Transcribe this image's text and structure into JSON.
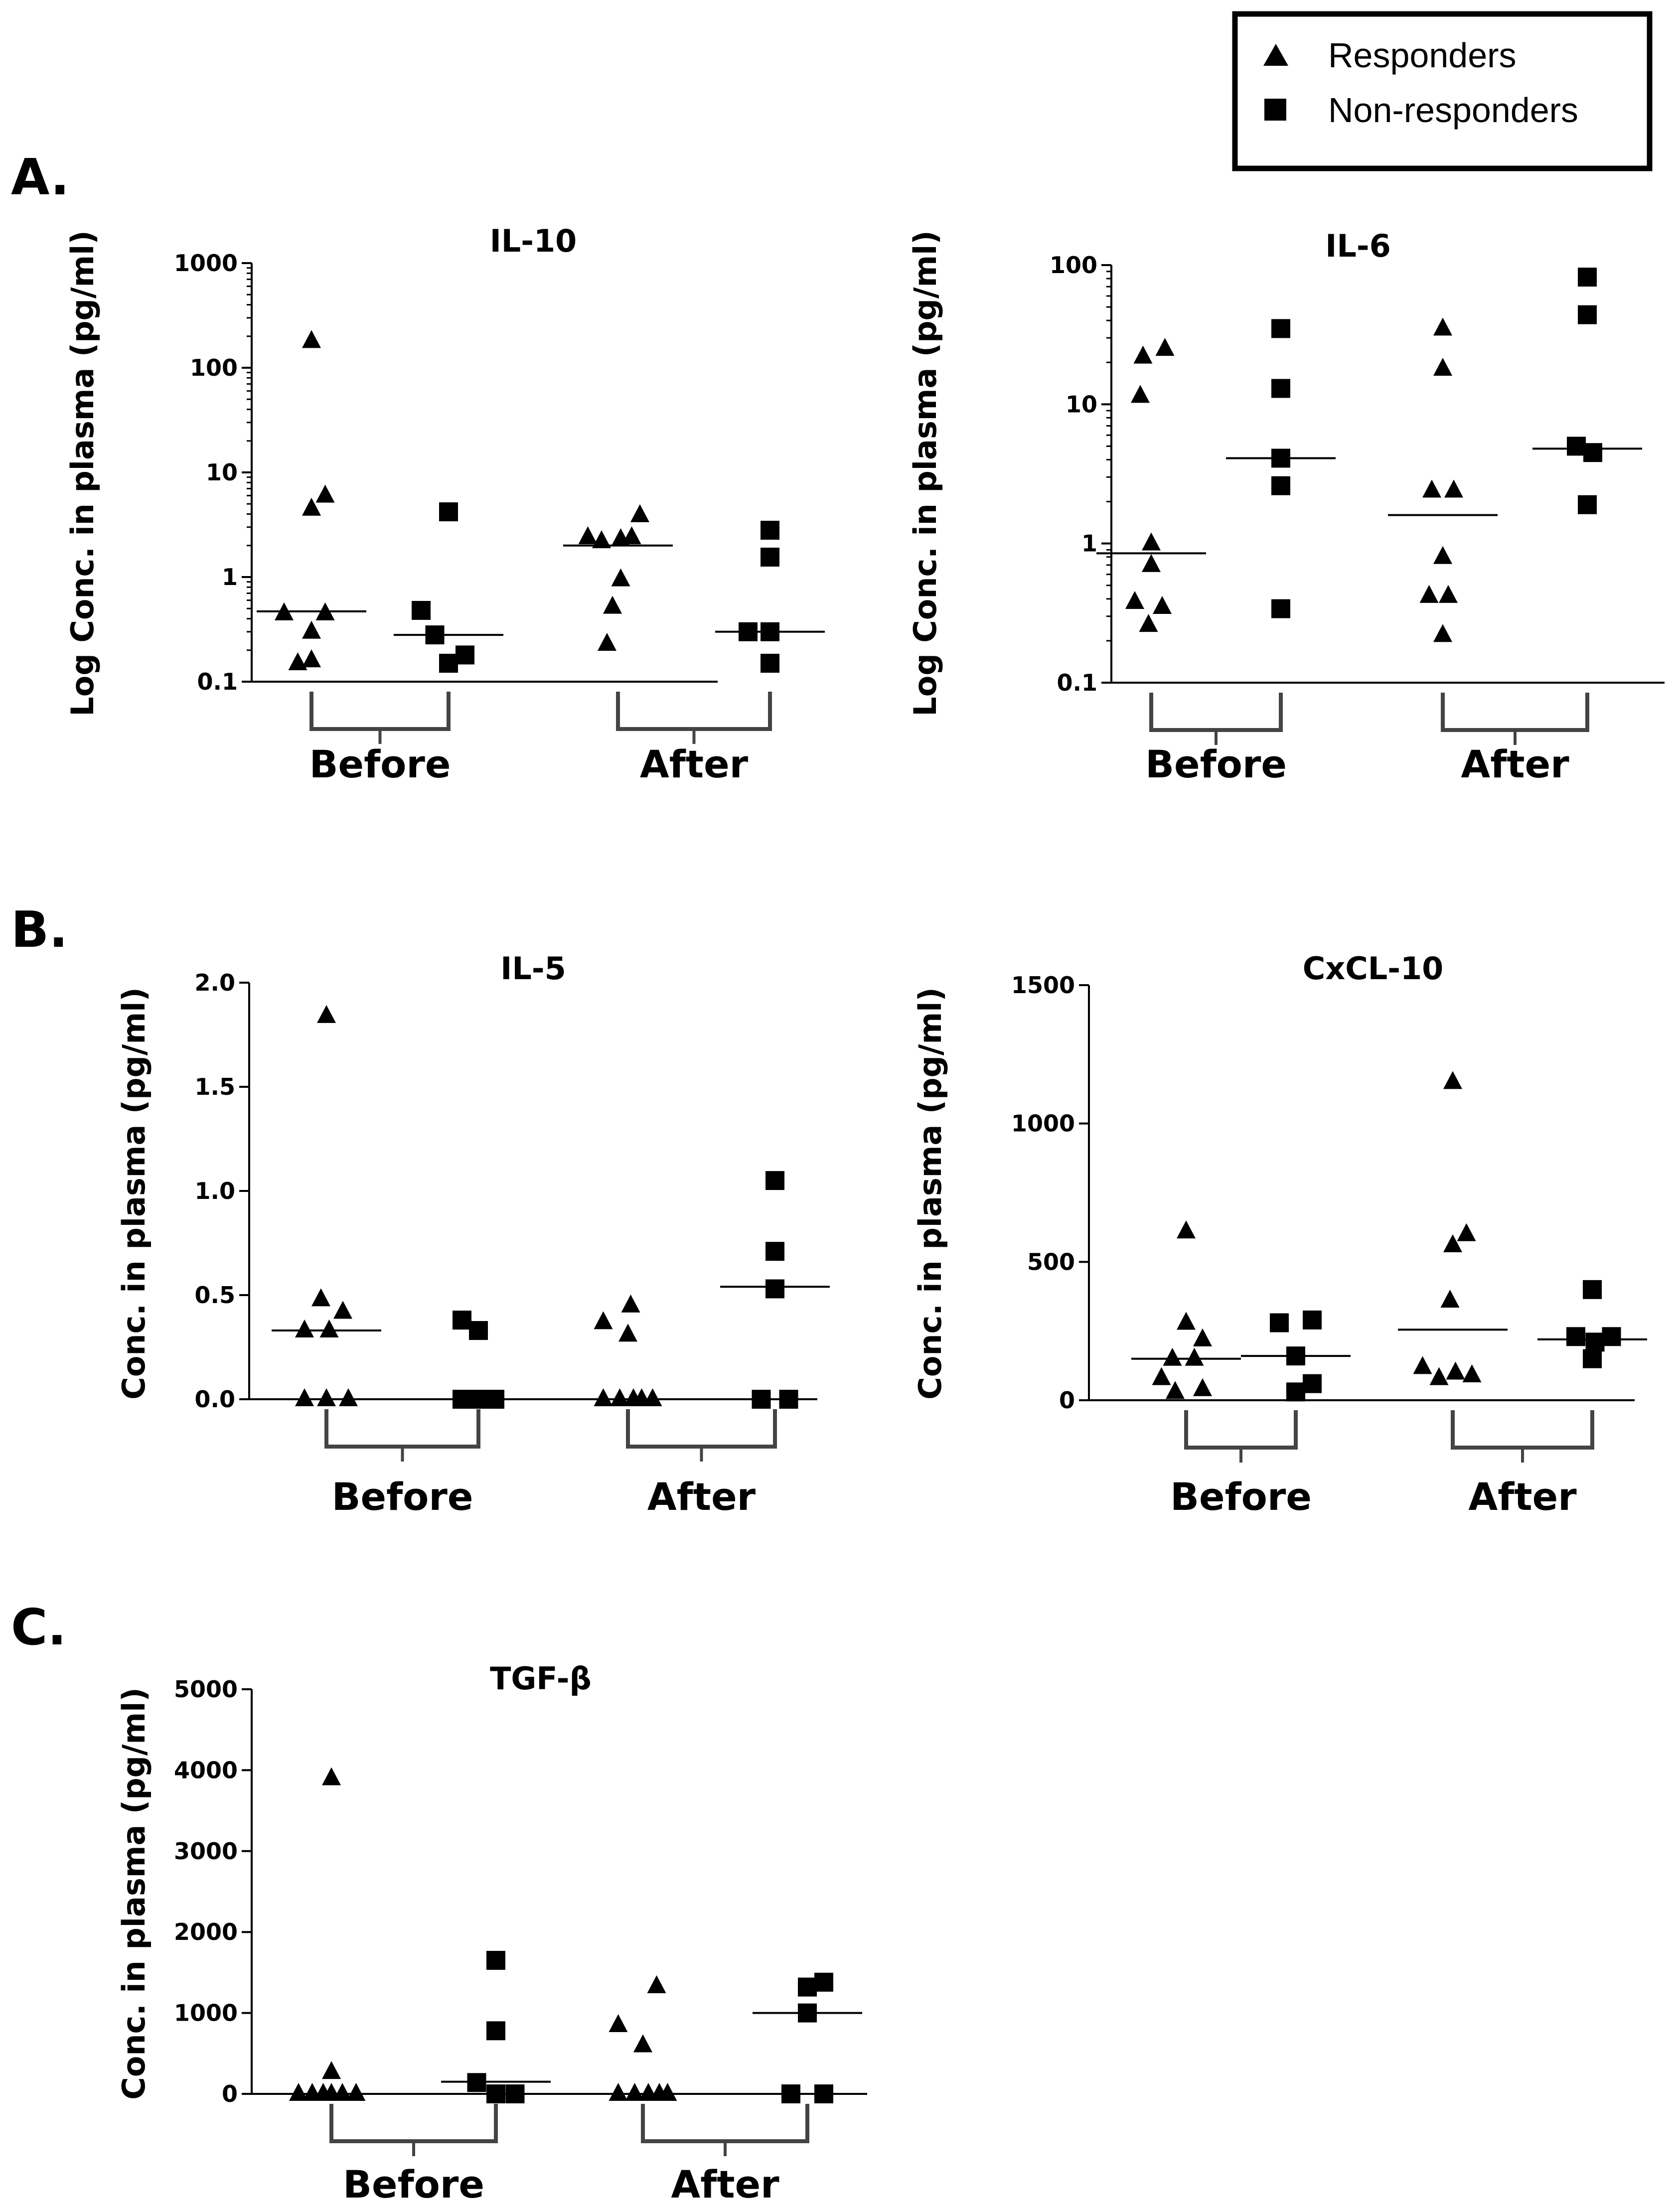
{
  "legend": {
    "items": [
      {
        "label": "Responders",
        "marker": "triangle"
      },
      {
        "label": "Non-responders",
        "marker": "square"
      }
    ]
  },
  "panel_labels": [
    "A.",
    "B.",
    "C."
  ],
  "chart_data": [
    {
      "type": "scatter",
      "scale": "log",
      "title": "IL-10",
      "panel": "A.",
      "ylabel": "Log Conc. in plasma (pg/ml)",
      "ylim": [
        0.1,
        1000
      ],
      "ticks": [
        0.1,
        1,
        10,
        100,
        1000
      ],
      "tick_labels": [
        "0.1",
        "1",
        "10",
        "100",
        "1000"
      ],
      "group_labels": [
        "Before",
        "After"
      ],
      "series": [
        {
          "name": "Responders",
          "phase": "Before",
          "marker": "triangle",
          "median": 0.47,
          "points": [
            [
              -0.5,
              0.45
            ],
            [
              -0.25,
              0.15
            ],
            [
              0,
              0.3
            ],
            [
              0,
              4.5
            ],
            [
              0,
              180
            ],
            [
              0,
              0.16
            ],
            [
              0.25,
              0.45
            ],
            [
              0.25,
              6
            ]
          ]
        },
        {
          "name": "Non-responders",
          "phase": "Before",
          "marker": "square",
          "median": 0.28,
          "points": [
            [
              -0.5,
              0.48
            ],
            [
              -0.25,
              0.28
            ],
            [
              0,
              0.15
            ],
            [
              0,
              4.2
            ],
            [
              0.3,
              0.18
            ]
          ]
        },
        {
          "name": "Responders",
          "phase": "After",
          "marker": "triangle",
          "median": 2.0,
          "points": [
            [
              -0.55,
              2.4
            ],
            [
              -0.3,
              2.2
            ],
            [
              -0.2,
              0.23
            ],
            [
              -0.1,
              0.52
            ],
            [
              0.05,
              2.3
            ],
            [
              0.05,
              0.95
            ],
            [
              0.25,
              2.4
            ],
            [
              0.4,
              3.9
            ]
          ]
        },
        {
          "name": "Non-responders",
          "phase": "After",
          "marker": "square",
          "median": 0.3,
          "points": [
            [
              -0.4,
              0.3
            ],
            [
              0,
              2.8
            ],
            [
              0,
              1.55
            ],
            [
              0,
              0.3
            ],
            [
              0,
              0.15
            ]
          ]
        }
      ]
    },
    {
      "type": "scatter",
      "scale": "log",
      "title": "IL-6",
      "panel": "A.",
      "ylabel": "Log Conc. in plasma (pg/ml)",
      "ylim": [
        0.1,
        100
      ],
      "ticks": [
        0.1,
        1,
        10,
        100
      ],
      "tick_labels": [
        "0.1",
        "1",
        "10",
        "100"
      ],
      "group_labels": [
        "Before",
        "After"
      ],
      "series": [
        {
          "name": "Responders",
          "phase": "Before",
          "marker": "triangle",
          "median": 0.85,
          "points": [
            [
              -0.3,
              0.38
            ],
            [
              -0.2,
              11.5
            ],
            [
              -0.15,
              22
            ],
            [
              -0.05,
              0.26
            ],
            [
              0,
              1.0
            ],
            [
              0,
              0.7
            ],
            [
              0.2,
              0.35
            ],
            [
              0.25,
              25
            ]
          ]
        },
        {
          "name": "Non-responders",
          "phase": "Before",
          "marker": "square",
          "median": 4.1,
          "points": [
            [
              0,
              35
            ],
            [
              0,
              13
            ],
            [
              0,
              4.1
            ],
            [
              0,
              2.6
            ],
            [
              0,
              0.34
            ]
          ]
        },
        {
          "name": "Responders",
          "phase": "After",
          "marker": "triangle",
          "median": 1.6,
          "points": [
            [
              -0.25,
              0.42
            ],
            [
              -0.2,
              2.4
            ],
            [
              0,
              18
            ],
            [
              0,
              35
            ],
            [
              0,
              0.8
            ],
            [
              0,
              0.22
            ],
            [
              0.1,
              0.42
            ],
            [
              0.2,
              2.4
            ]
          ]
        },
        {
          "name": "Non-responders",
          "phase": "After",
          "marker": "square",
          "median": 4.8,
          "points": [
            [
              -0.2,
              5.0
            ],
            [
              0,
              82
            ],
            [
              0,
              44
            ],
            [
              0.1,
              4.5
            ],
            [
              0,
              1.9
            ]
          ]
        }
      ]
    },
    {
      "type": "scatter",
      "scale": "linear",
      "title": "IL-5",
      "panel": "B.",
      "ylabel": "Conc. in plasma (pg/ml)",
      "ylim": [
        0,
        2.0
      ],
      "ticks": [
        0,
        0.5,
        1,
        1.5,
        2
      ],
      "tick_labels": [
        "0.0",
        "0.5",
        "1.0",
        "1.5",
        "2.0"
      ],
      "group_labels": [
        "Before",
        "After"
      ],
      "series": [
        {
          "name": "Responders",
          "phase": "Before",
          "marker": "triangle",
          "median": 0.33,
          "points": [
            [
              -0.4,
              0.33
            ],
            [
              -0.4,
              0.0
            ],
            [
              -0.1,
              0.48
            ],
            [
              0,
              0.0
            ],
            [
              0,
              1.84
            ],
            [
              0.05,
              0.33
            ],
            [
              0.3,
              0.42
            ],
            [
              0.4,
              0.0
            ]
          ]
        },
        {
          "name": "Non-responders",
          "phase": "Before",
          "marker": "square",
          "median": 0.0,
          "points": [
            [
              -0.3,
              0.38
            ],
            [
              -0.3,
              0.0
            ],
            [
              0,
              0.33
            ],
            [
              0,
              0.0
            ],
            [
              0.3,
              0.0
            ]
          ]
        },
        {
          "name": "Responders",
          "phase": "After",
          "marker": "triangle",
          "median": 0.0,
          "points": [
            [
              -0.45,
              0.37
            ],
            [
              -0.45,
              0.0
            ],
            [
              -0.15,
              0.0
            ],
            [
              0,
              0.31
            ],
            [
              0.05,
              0.45
            ],
            [
              0.1,
              0.0
            ],
            [
              0.25,
              0.0
            ],
            [
              0.45,
              0.0
            ]
          ]
        },
        {
          "name": "Non-responders",
          "phase": "After",
          "marker": "square",
          "median": 0.54,
          "points": [
            [
              0,
              1.05
            ],
            [
              0,
              0.71
            ],
            [
              0,
              0.53
            ],
            [
              -0.25,
              0.0
            ],
            [
              0.25,
              0.0
            ]
          ]
        }
      ]
    },
    {
      "type": "scatter",
      "scale": "linear",
      "title": "CxCL-10",
      "panel": "B.",
      "ylabel": "Conc. in plasma (pg/ml)",
      "ylim": [
        0,
        1500
      ],
      "ticks": [
        0,
        500,
        1000,
        1500
      ],
      "tick_labels": [
        "0",
        "500",
        "1000",
        "1500"
      ],
      "group_labels": [
        "Before",
        "After"
      ],
      "series": [
        {
          "name": "Responders",
          "phase": "Before",
          "marker": "triangle",
          "median": 150,
          "points": [
            [
              -0.45,
              80
            ],
            [
              -0.25,
              150
            ],
            [
              -0.2,
              30
            ],
            [
              0,
              280
            ],
            [
              0,
              610
            ],
            [
              0.15,
              150
            ],
            [
              0.3,
              220
            ],
            [
              0.3,
              40
            ]
          ]
        },
        {
          "name": "Non-responders",
          "phase": "Before",
          "marker": "square",
          "median": 160,
          "points": [
            [
              -0.3,
              280
            ],
            [
              0,
              30
            ],
            [
              0.3,
              60
            ],
            [
              0.3,
              290
            ],
            [
              0,
              160
            ]
          ]
        },
        {
          "name": "Responders",
          "phase": "After",
          "marker": "triangle",
          "median": 255,
          "points": [
            [
              -0.55,
              120
            ],
            [
              -0.25,
              80
            ],
            [
              -0.05,
              360
            ],
            [
              0,
              560
            ],
            [
              0,
              1150
            ],
            [
              0.05,
              100
            ],
            [
              0.25,
              600
            ],
            [
              0.35,
              90
            ]
          ]
        },
        {
          "name": "Non-responders",
          "phase": "After",
          "marker": "square",
          "median": 220,
          "points": [
            [
              -0.3,
              230
            ],
            [
              0,
              400
            ],
            [
              0,
              150
            ],
            [
              0.35,
              230
            ],
            [
              0.05,
              210
            ]
          ]
        }
      ]
    },
    {
      "type": "scatter",
      "scale": "linear",
      "title": "TGF-β",
      "panel": "C.",
      "ylabel": "Conc. in plasma (pg/ml)",
      "ylim": [
        0,
        5000
      ],
      "ticks": [
        0,
        1000,
        2000,
        3000,
        4000,
        5000
      ],
      "tick_labels": [
        "0",
        "1000",
        "2000",
        "3000",
        "4000",
        "5000"
      ],
      "group_labels": [
        "Before",
        "After"
      ],
      "series": [
        {
          "name": "Responders",
          "phase": "Before",
          "marker": "triangle",
          "median": 0,
          "points": [
            [
              -0.6,
              0
            ],
            [
              -0.35,
              0
            ],
            [
              -0.15,
              0
            ],
            [
              0,
              0
            ],
            [
              0,
              3900
            ],
            [
              0,
              270
            ],
            [
              0.2,
              0
            ],
            [
              0.45,
              0
            ]
          ]
        },
        {
          "name": "Non-responders",
          "phase": "Before",
          "marker": "square",
          "median": 150,
          "points": [
            [
              -0.35,
              140
            ],
            [
              0,
              1650
            ],
            [
              0,
              780
            ],
            [
              0,
              0
            ],
            [
              0.35,
              0
            ]
          ]
        },
        {
          "name": "Responders",
          "phase": "After",
          "marker": "triangle",
          "median": 0,
          "points": [
            [
              -0.45,
              0
            ],
            [
              -0.45,
              850
            ],
            [
              -0.15,
              0
            ],
            [
              0,
              600
            ],
            [
              0.1,
              0
            ],
            [
              0.25,
              1330
            ],
            [
              0.3,
              0
            ],
            [
              0.45,
              0
            ]
          ]
        },
        {
          "name": "Non-responders",
          "phase": "After",
          "marker": "square",
          "median": 1000,
          "points": [
            [
              -0.3,
              0
            ],
            [
              0,
              1000
            ],
            [
              0,
              1320
            ],
            [
              0.3,
              1380
            ],
            [
              0.3,
              0
            ]
          ]
        }
      ]
    }
  ]
}
